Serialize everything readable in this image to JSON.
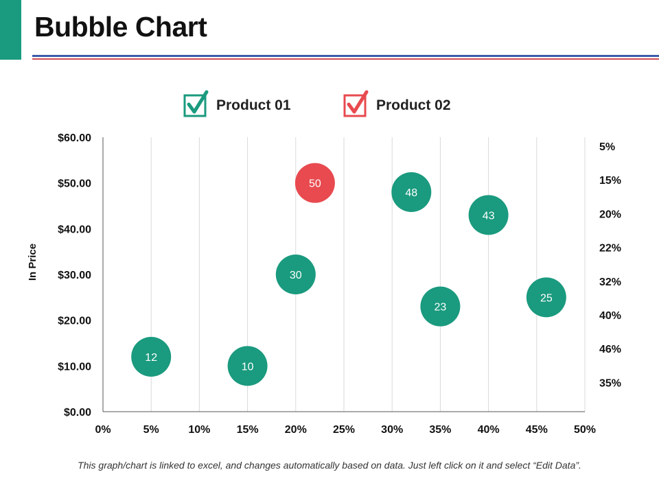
{
  "slide": {
    "title": "Bubble Chart",
    "footnote": "This graph/chart is linked to excel, and changes automatically based on data. Just left click on it and select “Edit Data”."
  },
  "colors": {
    "accent": "#1a9a7e",
    "product_01": "#1a9a7e",
    "product_02": "#e84a4f",
    "rule_blue": "#3b5ba8",
    "rule_red": "#d04a55"
  },
  "chart_data": {
    "type": "scatter",
    "subtype": "bubble",
    "ylabel": "In Price",
    "xlabel": "",
    "xlim": [
      0,
      50
    ],
    "ylim": [
      0,
      60
    ],
    "x_tick_labels": [
      "0%",
      "5%",
      "10%",
      "15%",
      "20%",
      "25%",
      "30%",
      "35%",
      "40%",
      "45%",
      "50%"
    ],
    "y_tick_labels": [
      "$0.00",
      "$10.00",
      "$20.00",
      "$30.00",
      "$40.00",
      "$50.00",
      "$60.00"
    ],
    "right_labels": [
      "5%",
      "15%",
      "20%",
      "22%",
      "32%",
      "40%",
      "46%",
      "35%"
    ],
    "grid": "vertical",
    "legend_position": "top",
    "series": [
      {
        "name": "Product 01",
        "color": "#1a9a7e",
        "points": [
          {
            "x": 5,
            "y": 12,
            "label": "12"
          },
          {
            "x": 15,
            "y": 10,
            "label": "10"
          },
          {
            "x": 20,
            "y": 30,
            "label": "30"
          },
          {
            "x": 32,
            "y": 48,
            "label": "48"
          },
          {
            "x": 35,
            "y": 23,
            "label": "23"
          },
          {
            "x": 40,
            "y": 43,
            "label": "43"
          },
          {
            "x": 46,
            "y": 25,
            "label": "25"
          }
        ]
      },
      {
        "name": "Product 02",
        "color": "#e84a4f",
        "points": [
          {
            "x": 22,
            "y": 50,
            "label": "50"
          }
        ]
      }
    ]
  }
}
